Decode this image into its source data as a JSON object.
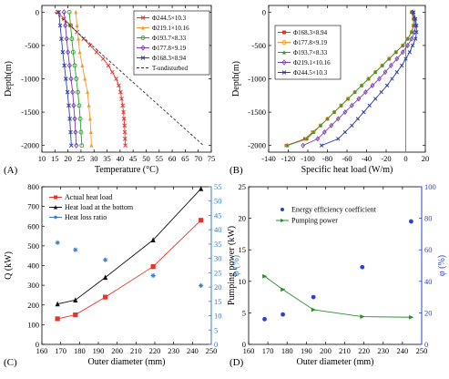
{
  "chart_data": [
    {
      "panel": "(A)",
      "type": "line",
      "xlabel": "Temperature (°C)",
      "ylabel": "Depth(m)",
      "xlim": [
        10,
        75
      ],
      "ylim": [
        -2100,
        100
      ],
      "xticks": [
        10,
        15,
        20,
        25,
        30,
        35,
        40,
        45,
        50,
        55,
        60,
        65,
        70,
        75
      ],
      "yticks": [
        0,
        -500,
        -1000,
        -1500,
        -2000
      ],
      "legend_position": "top-right",
      "series": [
        {
          "name": "Φ244.5×10.3",
          "color": "#e8322a",
          "marker": "x",
          "dash": "",
          "points": [
            [
              16,
              0
            ],
            [
              18.5,
              -100
            ],
            [
              21,
              -200
            ],
            [
              23.5,
              -300
            ],
            [
              26,
              -400
            ],
            [
              28.5,
              -500
            ],
            [
              31,
              -600
            ],
            [
              33.5,
              -700
            ],
            [
              35.5,
              -800
            ],
            [
              37,
              -900
            ],
            [
              38.5,
              -1000
            ],
            [
              39.5,
              -1100
            ],
            [
              40.2,
              -1200
            ],
            [
              40.6,
              -1300
            ],
            [
              41,
              -1400
            ],
            [
              41.3,
              -1500
            ],
            [
              41.5,
              -1600
            ],
            [
              41.7,
              -1700
            ],
            [
              41.8,
              -1800
            ],
            [
              41.9,
              -1900
            ],
            [
              42,
              -2000
            ]
          ]
        },
        {
          "name": "Φ219.1×10.16",
          "color": "#f29a2e",
          "marker": "triangle",
          "dash": "",
          "points": [
            [
              23,
              0
            ],
            [
              23.5,
              -200
            ],
            [
              24,
              -400
            ],
            [
              24.5,
              -600
            ],
            [
              25.5,
              -800
            ],
            [
              26.5,
              -1000
            ],
            [
              27.5,
              -1200
            ],
            [
              28,
              -1400
            ],
            [
              28.5,
              -1600
            ],
            [
              28.8,
              -1800
            ],
            [
              29,
              -2000
            ]
          ]
        },
        {
          "name": "Φ193.7×8.33",
          "color": "#2ea02e",
          "marker": "circle",
          "dash": "",
          "points": [
            [
              20.5,
              0
            ],
            [
              21,
              -200
            ],
            [
              21.5,
              -400
            ],
            [
              22,
              -600
            ],
            [
              22.6,
              -800
            ],
            [
              23.2,
              -1000
            ],
            [
              23.8,
              -1200
            ],
            [
              24.3,
              -1400
            ],
            [
              24.7,
              -1600
            ],
            [
              25,
              -1800
            ],
            [
              25.3,
              -2000
            ]
          ]
        },
        {
          "name": "Φ177.8×9.19",
          "color": "#7b3fb5",
          "marker": "diamond",
          "dash": "",
          "points": [
            [
              18.5,
              0
            ],
            [
              19,
              -200
            ],
            [
              19.5,
              -400
            ],
            [
              20,
              -600
            ],
            [
              20.6,
              -800
            ],
            [
              21.2,
              -1000
            ],
            [
              21.8,
              -1200
            ],
            [
              22.2,
              -1400
            ],
            [
              22.6,
              -1600
            ],
            [
              22.9,
              -1800
            ],
            [
              23.2,
              -2000
            ]
          ]
        },
        {
          "name": "Φ168.3×8.94",
          "color": "#2c3fa8",
          "marker": "x",
          "dash": "",
          "points": [
            [
              16.5,
              0
            ],
            [
              17,
              -200
            ],
            [
              17.5,
              -400
            ],
            [
              18,
              -600
            ],
            [
              18.6,
              -800
            ],
            [
              19.2,
              -1000
            ],
            [
              19.8,
              -1200
            ],
            [
              20.3,
              -1400
            ],
            [
              20.7,
              -1600
            ],
            [
              21,
              -1800
            ],
            [
              21.3,
              -2000
            ]
          ]
        },
        {
          "name": "T-undisturbed",
          "color": "#333333",
          "marker": "none",
          "dash": "3,2",
          "points": [
            [
              15,
              0
            ],
            [
              72,
              -2000
            ]
          ]
        }
      ]
    },
    {
      "panel": "(B)",
      "type": "line",
      "xlabel": "Specific heat load (W/m)",
      "ylabel": "Depth(m)",
      "xlim": [
        -140,
        20
      ],
      "ylim": [
        -2100,
        100
      ],
      "xticks": [
        -140,
        -120,
        -100,
        -80,
        -60,
        -40,
        -20,
        0,
        20
      ],
      "yticks": [
        0,
        -500,
        -1000,
        -1500,
        -2000
      ],
      "zero_line_color": "#3cb83c",
      "legend_position": "top-left",
      "series": [
        {
          "name": "Φ168.3×8.94",
          "color": "#e8322a",
          "marker": "square",
          "points": [
            [
              6,
              0
            ],
            [
              8,
              -100
            ],
            [
              8,
              -200
            ],
            [
              6,
              -300
            ],
            [
              2,
              -400
            ],
            [
              -3,
              -500
            ],
            [
              -10,
              -600
            ],
            [
              -17,
              -700
            ],
            [
              -24,
              -800
            ],
            [
              -31,
              -900
            ],
            [
              -38,
              -1000
            ],
            [
              -45,
              -1100
            ],
            [
              -52,
              -1200
            ],
            [
              -59,
              -1300
            ],
            [
              -66,
              -1400
            ],
            [
              -73,
              -1500
            ],
            [
              -80,
              -1600
            ],
            [
              -87,
              -1700
            ],
            [
              -95,
              -1800
            ],
            [
              -103,
              -1900
            ],
            [
              -122,
              -2000
            ]
          ]
        },
        {
          "name": "Φ177.8×9.19",
          "color": "#f29a2e",
          "marker": "circle",
          "points": [
            [
              6,
              0
            ],
            [
              8,
              -100
            ],
            [
              8,
              -200
            ],
            [
              6,
              -300
            ],
            [
              2,
              -400
            ],
            [
              -3,
              -500
            ],
            [
              -10,
              -600
            ],
            [
              -17,
              -700
            ],
            [
              -24,
              -800
            ],
            [
              -31,
              -900
            ],
            [
              -38,
              -1000
            ],
            [
              -45,
              -1100
            ],
            [
              -52,
              -1200
            ],
            [
              -59,
              -1300
            ],
            [
              -66,
              -1400
            ],
            [
              -73,
              -1500
            ],
            [
              -80,
              -1600
            ],
            [
              -87,
              -1700
            ],
            [
              -94,
              -1800
            ],
            [
              -101,
              -1900
            ],
            [
              -121,
              -2000
            ]
          ]
        },
        {
          "name": "Φ193.7×8.33",
          "color": "#2ea02e",
          "marker": "triangle",
          "points": [
            [
              6,
              0
            ],
            [
              8,
              -100
            ],
            [
              8,
              -200
            ],
            [
              6,
              -300
            ],
            [
              2,
              -400
            ],
            [
              -3,
              -500
            ],
            [
              -10,
              -600
            ],
            [
              -17,
              -700
            ],
            [
              -24,
              -800
            ],
            [
              -31,
              -900
            ],
            [
              -38,
              -1000
            ],
            [
              -45,
              -1100
            ],
            [
              -52,
              -1200
            ],
            [
              -59,
              -1300
            ],
            [
              -66,
              -1400
            ],
            [
              -73,
              -1500
            ],
            [
              -80,
              -1600
            ],
            [
              -87,
              -1700
            ],
            [
              -94,
              -1800
            ],
            [
              -101,
              -1900
            ],
            [
              -121,
              -2000
            ]
          ]
        },
        {
          "name": "Φ219.1×10.16",
          "color": "#7b3fb5",
          "marker": "diamond",
          "points": [
            [
              7,
              0
            ],
            [
              9,
              -100
            ],
            [
              10,
              -200
            ],
            [
              9,
              -300
            ],
            [
              6,
              -400
            ],
            [
              2,
              -500
            ],
            [
              -3,
              -600
            ],
            [
              -9,
              -700
            ],
            [
              -15,
              -800
            ],
            [
              -21,
              -900
            ],
            [
              -27,
              -1000
            ],
            [
              -34,
              -1100
            ],
            [
              -41,
              -1200
            ],
            [
              -48,
              -1300
            ],
            [
              -55,
              -1400
            ],
            [
              -62,
              -1500
            ],
            [
              -69,
              -1600
            ],
            [
              -76,
              -1700
            ],
            [
              -83,
              -1800
            ],
            [
              -90,
              -1900
            ],
            [
              -105,
              -2000
            ]
          ]
        },
        {
          "name": "Φ244.5×10.3",
          "color": "#2c3fa8",
          "marker": "x",
          "points": [
            [
              8,
              0
            ],
            [
              10,
              -100
            ],
            [
              11,
              -200
            ],
            [
              11,
              -300
            ],
            [
              10,
              -400
            ],
            [
              7,
              -500
            ],
            [
              4,
              -600
            ],
            [
              0,
              -700
            ],
            [
              -4,
              -800
            ],
            [
              -9,
              -900
            ],
            [
              -14,
              -1000
            ],
            [
              -19,
              -1100
            ],
            [
              -25,
              -1200
            ],
            [
              -31,
              -1300
            ],
            [
              -37,
              -1400
            ],
            [
              -43,
              -1500
            ],
            [
              -49,
              -1600
            ],
            [
              -55,
              -1700
            ],
            [
              -62,
              -1800
            ],
            [
              -69,
              -1900
            ],
            [
              -86,
              -2000
            ]
          ]
        }
      ]
    },
    {
      "panel": "(C)",
      "type": "line",
      "xlabel": "Outer diameter (mm)",
      "ylabel": "Q (kW)",
      "ylabel_right": "φ (%)",
      "xlim": [
        160,
        250
      ],
      "ylim": [
        0,
        800
      ],
      "ylim_right": [
        0,
        55
      ],
      "xticks": [
        160,
        170,
        180,
        190,
        200,
        210,
        220,
        230,
        240,
        250
      ],
      "yticks": [
        0,
        100,
        200,
        300,
        400,
        500,
        600,
        700,
        800
      ],
      "yticks_right": [
        0,
        5,
        10,
        15,
        20,
        25,
        30,
        35,
        40,
        45,
        50,
        55
      ],
      "legend_position": "top-left",
      "series": [
        {
          "name": "Actual heat load",
          "color": "#e8322a",
          "marker": "square",
          "axis": "left",
          "x": [
            168.3,
            177.8,
            193.7,
            219.1,
            244.5
          ],
          "y": [
            130,
            150,
            240,
            395,
            630
          ]
        },
        {
          "name": "Heat load at the bottom",
          "color": "#111111",
          "marker": "triangle",
          "axis": "left",
          "x": [
            168.3,
            177.8,
            193.7,
            219.1,
            244.5
          ],
          "y": [
            205,
            225,
            340,
            530,
            790
          ]
        },
        {
          "name": "Heat loss ratio",
          "color": "#3a78c8",
          "marker": "star",
          "axis": "right",
          "x": [
            168.3,
            177.8,
            193.7,
            219.1,
            244.5
          ],
          "y": [
            35.5,
            33,
            29.5,
            24,
            20.5
          ]
        }
      ]
    },
    {
      "panel": "(D)",
      "type": "line",
      "xlabel": "Outer diameter (mm)",
      "ylabel": "Pumping power (kW)",
      "ylabel_right": "φ (%)",
      "xlim": [
        160,
        250
      ],
      "ylim": [
        0,
        25
      ],
      "ylim_right": [
        0,
        100
      ],
      "xticks": [
        160,
        170,
        180,
        190,
        200,
        210,
        220,
        230,
        240,
        250
      ],
      "yticks": [
        0,
        5,
        10,
        15,
        20,
        25
      ],
      "yticks_right": [
        0,
        20,
        40,
        60,
        80,
        100
      ],
      "legend_position": "top-center",
      "series": [
        {
          "name": "Energy efficiency coefficient",
          "color": "#2c3fd6",
          "marker": "dot",
          "axis": "right",
          "line": false,
          "x": [
            168.3,
            177.8,
            193.7,
            219.1,
            244.5
          ],
          "y": [
            16,
            19,
            30,
            49,
            78
          ]
        },
        {
          "name": "Pumping power",
          "color": "#2e8b2e",
          "marker": "triangle-right",
          "axis": "left",
          "line": true,
          "x": [
            168.3,
            177.8,
            193.7,
            219.1,
            244.5
          ],
          "y": [
            10.8,
            8.7,
            5.5,
            4.4,
            4.3
          ]
        }
      ]
    }
  ]
}
